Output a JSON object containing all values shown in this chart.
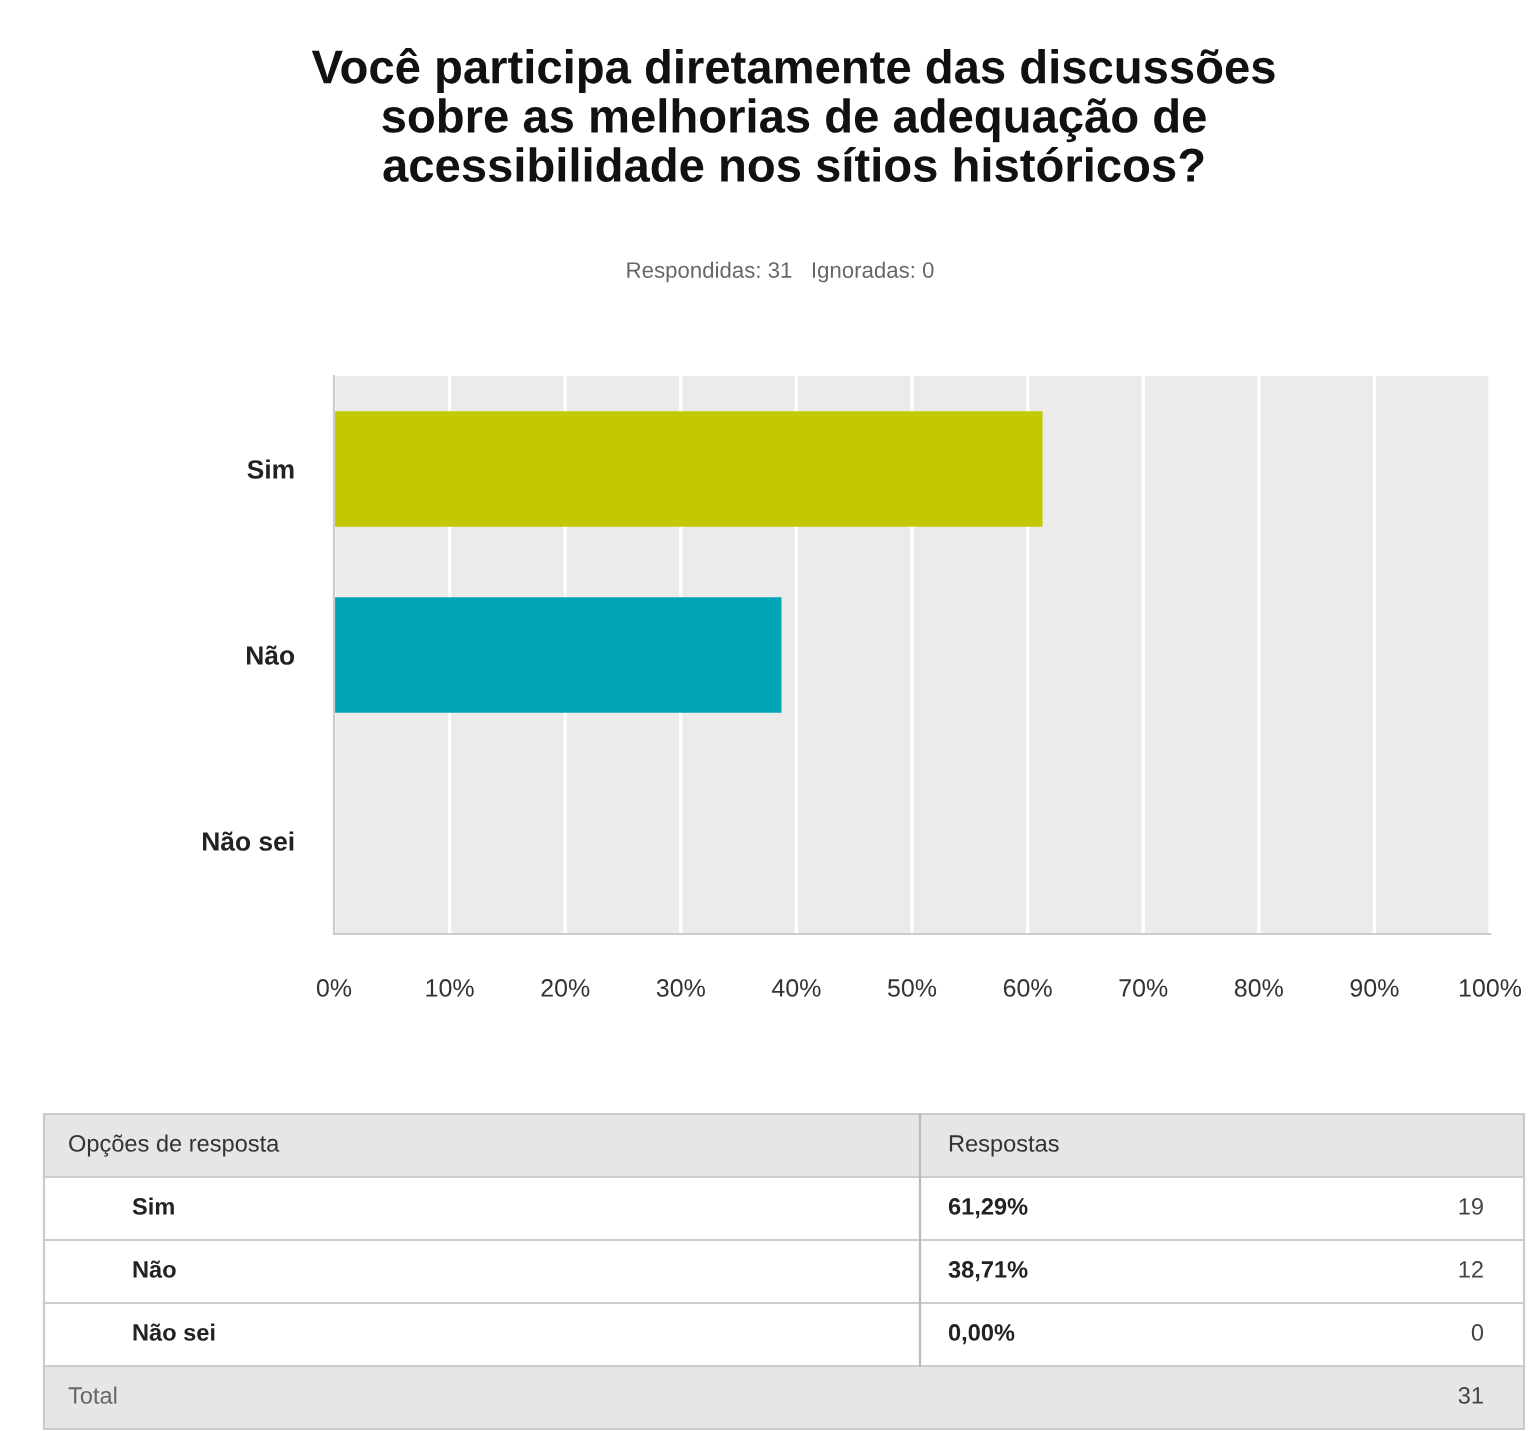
{
  "chart_data": {
    "type": "bar",
    "orientation": "horizontal",
    "title": "Você participa diretamente das discussões\nsobre as melhorias de adequação de\nacessibilidade nos sítios históricos?",
    "subtitle": "Respondidas: 31   Ignoradas: 0",
    "categories": [
      "Sim",
      "Não",
      "Não sei"
    ],
    "values": [
      61.29,
      38.71,
      0
    ],
    "colors": [
      "#c3c800",
      "#00a5b5",
      "#888888"
    ],
    "xlim": [
      0,
      100
    ],
    "xticks": [
      {
        "value": 0,
        "label": "0%"
      },
      {
        "value": 10,
        "label": "10%"
      },
      {
        "value": 20,
        "label": "20%"
      },
      {
        "value": 30,
        "label": "30%"
      },
      {
        "value": 40,
        "label": "40%"
      },
      {
        "value": 50,
        "label": "50%"
      },
      {
        "value": 60,
        "label": "60%"
      },
      {
        "value": 70,
        "label": "70%"
      },
      {
        "value": 80,
        "label": "80%"
      },
      {
        "value": 90,
        "label": "90%"
      },
      {
        "value": 100,
        "label": "100%"
      }
    ],
    "grid": "x",
    "annotations": [
      "Opções de resposta",
      "Respostas",
      "61,29%",
      "38,71%",
      "0,00%",
      "19",
      "12",
      "0",
      "Total",
      "31"
    ]
  }
}
